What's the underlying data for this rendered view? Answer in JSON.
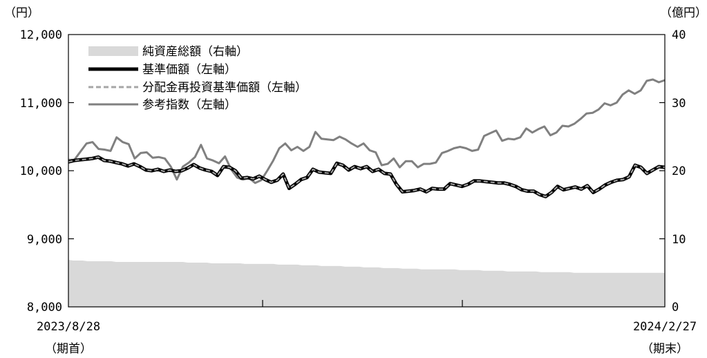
{
  "chart_data": {
    "type": "line",
    "x_start_label": "2023/8/28",
    "x_start_sublabel": "（期首）",
    "x_end_label": "2024/2/27",
    "x_end_sublabel": "（期末）",
    "y_left_unit": "（円）",
    "y_right_unit": "（億円）",
    "y_left_ticks": [
      "12,000",
      "11,000",
      "10,000",
      "9,000",
      "8,000"
    ],
    "y_right_ticks": [
      "40",
      "30",
      "20",
      "10",
      "0"
    ],
    "y_left_range": [
      8000,
      12000
    ],
    "y_right_range": [
      0,
      40
    ],
    "legend": [
      {
        "label": "純資産総額（右軸）",
        "style": "area",
        "color": "#d9d9d9"
      },
      {
        "label": "基準価額（左軸）",
        "style": "thick-line",
        "color": "#000000"
      },
      {
        "label": "分配金再投資基準価額（左軸）",
        "style": "dashed-line",
        "color": "#a6a6a6"
      },
      {
        "label": "参考指数（左軸）",
        "style": "line",
        "color": "#808080"
      }
    ],
    "series": [
      {
        "name": "純資産総額（右軸）",
        "axis": "right",
        "values": [
          6.9,
          6.8,
          6.8,
          6.8,
          6.7,
          6.7,
          6.7,
          6.7,
          6.7,
          6.7,
          6.6,
          6.6,
          6.6,
          6.6,
          6.6,
          6.6,
          6.6,
          6.6,
          6.6,
          6.6,
          6.6,
          6.6,
          6.6,
          6.6,
          6.6,
          6.5,
          6.5,
          6.5,
          6.5,
          6.5,
          6.4,
          6.4,
          6.4,
          6.4,
          6.4,
          6.4,
          6.4,
          6.3,
          6.3,
          6.3,
          6.3,
          6.3,
          6.3,
          6.3,
          6.2,
          6.2,
          6.2,
          6.2,
          6.2,
          6.1,
          6.1,
          6.1,
          6.1,
          6.0,
          6.0,
          6.0,
          6.0,
          6.0,
          5.9,
          5.9,
          5.9,
          5.9,
          5.8,
          5.8,
          5.8,
          5.8,
          5.7,
          5.7,
          5.7,
          5.7,
          5.6,
          5.6,
          5.6,
          5.6,
          5.5,
          5.5,
          5.5,
          5.5,
          5.5,
          5.5,
          5.5,
          5.5,
          5.4,
          5.4,
          5.4,
          5.4,
          5.4,
          5.3,
          5.3,
          5.3,
          5.3,
          5.3,
          5.2,
          5.2,
          5.2,
          5.2,
          5.2,
          5.2,
          5.2,
          5.1,
          5.1,
          5.1,
          5.1,
          5.1,
          5.1,
          5.1,
          5.0,
          5.0,
          5.0,
          5.0,
          5.0,
          5.0,
          5.0,
          5.0,
          5.0,
          5.0,
          5.0,
          5.0,
          5.0,
          5.0,
          5.0,
          5.0,
          5.0,
          5.0,
          5.0,
          5.0
        ]
      },
      {
        "name": "基準価額（左軸）",
        "axis": "left",
        "values": [
          10130,
          10150,
          10160,
          10170,
          10180,
          10200,
          10150,
          10140,
          10120,
          10100,
          10070,
          10100,
          10060,
          10010,
          10000,
          10020,
          9990,
          10010,
          9990,
          10000,
          10040,
          10090,
          10040,
          10010,
          9990,
          9930,
          10060,
          10050,
          10000,
          9890,
          9900,
          9880,
          9920,
          9870,
          9830,
          9860,
          9950,
          9740,
          9800,
          9870,
          9900,
          10020,
          9980,
          9970,
          9960,
          10110,
          10080,
          10010,
          10060,
          10030,
          10060,
          9990,
          10020,
          9960,
          9950,
          9800,
          9690,
          9700,
          9710,
          9730,
          9690,
          9740,
          9730,
          9730,
          9810,
          9790,
          9770,
          9800,
          9850,
          9850,
          9840,
          9830,
          9820,
          9820,
          9800,
          9770,
          9720,
          9700,
          9700,
          9650,
          9620,
          9680,
          9770,
          9720,
          9740,
          9760,
          9730,
          9780,
          9680,
          9730,
          9790,
          9830,
          9860,
          9870,
          9910,
          10080,
          10050,
          9960,
          10010,
          10060,
          10050
        ]
      },
      {
        "name": "分配金再投資基準価額（左軸）",
        "axis": "left",
        "values": [
          10130,
          10150,
          10160,
          10170,
          10180,
          10200,
          10150,
          10140,
          10120,
          10100,
          10070,
          10100,
          10060,
          10010,
          10000,
          10020,
          9990,
          10010,
          9990,
          10000,
          10040,
          10090,
          10040,
          10010,
          9990,
          9930,
          10060,
          10050,
          10000,
          9890,
          9900,
          9880,
          9920,
          9870,
          9830,
          9860,
          9950,
          9740,
          9800,
          9870,
          9900,
          10020,
          9980,
          9970,
          9960,
          10110,
          10080,
          10010,
          10060,
          10030,
          10060,
          9990,
          10020,
          9960,
          9950,
          9800,
          9690,
          9700,
          9710,
          9730,
          9690,
          9740,
          9730,
          9730,
          9810,
          9790,
          9770,
          9800,
          9850,
          9850,
          9840,
          9830,
          9820,
          9820,
          9800,
          9770,
          9720,
          9700,
          9700,
          9650,
          9620,
          9680,
          9770,
          9720,
          9740,
          9760,
          9730,
          9780,
          9680,
          9730,
          9790,
          9830,
          9860,
          9870,
          9910,
          10080,
          10050,
          9960,
          10010,
          10060,
          10050
        ]
      },
      {
        "name": "参考指数（左軸）",
        "axis": "left",
        "values": [
          10160,
          10160,
          10280,
          10400,
          10420,
          10320,
          10310,
          10290,
          10490,
          10420,
          10390,
          10180,
          10260,
          10270,
          10190,
          10200,
          10180,
          10060,
          9870,
          10060,
          10120,
          10200,
          10380,
          10180,
          10150,
          10110,
          10210,
          10020,
          9900,
          9870,
          9890,
          9820,
          9860,
          10000,
          10150,
          10330,
          10400,
          10300,
          10350,
          10290,
          10350,
          10570,
          10470,
          10460,
          10450,
          10500,
          10460,
          10400,
          10350,
          10400,
          10300,
          10270,
          10080,
          10100,
          10180,
          10050,
          10140,
          10140,
          10050,
          10100,
          10100,
          10120,
          10260,
          10290,
          10330,
          10350,
          10330,
          10290,
          10310,
          10510,
          10550,
          10590,
          10440,
          10470,
          10460,
          10490,
          10620,
          10560,
          10610,
          10650,
          10520,
          10560,
          10660,
          10650,
          10690,
          10760,
          10840,
          10850,
          10900,
          10990,
          10960,
          11000,
          11120,
          11180,
          11130,
          11180,
          11320,
          11340,
          11300,
          11330
        ]
      }
    ]
  }
}
